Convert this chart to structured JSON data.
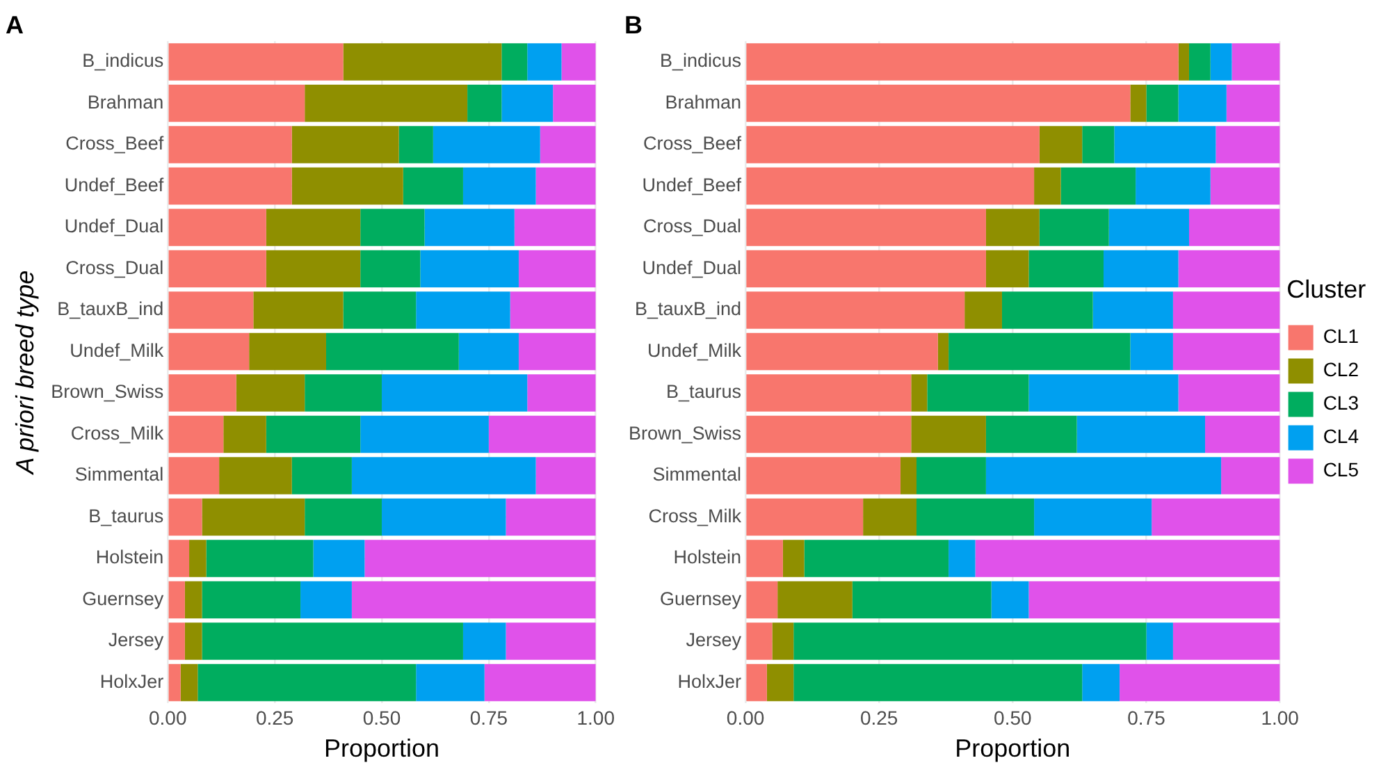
{
  "chart_data": [
    {
      "type": "bar",
      "title": "A",
      "orientation": "horizontal",
      "stacked": true,
      "xlabel": "Proportion",
      "ylabel": "A priori breed type",
      "grid": true,
      "legend": false,
      "categories": [
        "B_indicus",
        "Brahman",
        "Cross_Beef",
        "Undef_Beef",
        "Undef_Dual",
        "Cross_Dual",
        "B_tauxB_ind",
        "Undef_Milk",
        "Brown_Swiss",
        "Cross_Milk",
        "Simmental",
        "B_taurus",
        "Holstein",
        "Guernsey",
        "Jersey",
        "HolxJer"
      ],
      "xlim": [
        0,
        1
      ],
      "xticks": [
        {
          "value": 0,
          "label": "0.00"
        },
        {
          "value": 0.25,
          "label": "0.25"
        },
        {
          "value": 0.5,
          "label": "0.50"
        },
        {
          "value": 0.75,
          "label": "0.75"
        },
        {
          "value": 1,
          "label": "1.00"
        }
      ],
      "series": [
        {
          "color": "#f8766d",
          "values": [
            0.41,
            0.32,
            0.29,
            0.29,
            0.23,
            0.23,
            0.2,
            0.19,
            0.16,
            0.13,
            0.12,
            0.08,
            0.05,
            0.04,
            0.04,
            0.03
          ]
        },
        {
          "color": "#8f8f00",
          "values": [
            0.37,
            0.38,
            0.25,
            0.26,
            0.22,
            0.22,
            0.21,
            0.18,
            0.16,
            0.1,
            0.17,
            0.24,
            0.04,
            0.04,
            0.04,
            0.04
          ]
        },
        {
          "color": "#00ad5f",
          "values": [
            0.06,
            0.08,
            0.08,
            0.14,
            0.15,
            0.14,
            0.17,
            0.31,
            0.18,
            0.22,
            0.14,
            0.18,
            0.25,
            0.23,
            0.61,
            0.51
          ]
        },
        {
          "color": "#00a0f0",
          "values": [
            0.08,
            0.12,
            0.25,
            0.17,
            0.21,
            0.23,
            0.22,
            0.14,
            0.34,
            0.3,
            0.43,
            0.29,
            0.12,
            0.12,
            0.1,
            0.16
          ]
        },
        {
          "color": "#e052ea",
          "values": [
            0.08,
            0.1,
            0.13,
            0.14,
            0.19,
            0.18,
            0.2,
            0.18,
            0.16,
            0.25,
            0.14,
            0.21,
            0.54,
            0.57,
            0.21,
            0.26
          ]
        }
      ]
    },
    {
      "type": "bar",
      "title": "B",
      "orientation": "horizontal",
      "stacked": true,
      "xlabel": "Proportion",
      "grid": true,
      "legend": "right",
      "legend_title": "Cluster",
      "categories": [
        "B_indicus",
        "Brahman",
        "Cross_Beef",
        "Undef_Beef",
        "Cross_Dual",
        "Undef_Dual",
        "B_tauxB_ind",
        "Undef_Milk",
        "B_taurus",
        "Brown_Swiss",
        "Simmental",
        "Cross_Milk",
        "Holstein",
        "Guernsey",
        "Jersey",
        "HolxJer"
      ],
      "xlim": [
        0,
        1
      ],
      "xticks": [
        {
          "value": 0,
          "label": "0.00"
        },
        {
          "value": 0.25,
          "label": "0.25"
        },
        {
          "value": 0.5,
          "label": "0.50"
        },
        {
          "value": 0.75,
          "label": "0.75"
        },
        {
          "value": 1,
          "label": "1.00"
        }
      ],
      "series": [
        {
          "name": "CL1",
          "color": "#f8766d",
          "values": [
            0.81,
            0.72,
            0.55,
            0.54,
            0.45,
            0.45,
            0.41,
            0.36,
            0.31,
            0.31,
            0.29,
            0.22,
            0.07,
            0.06,
            0.05,
            0.04
          ]
        },
        {
          "name": "CL2",
          "color": "#8f8f00",
          "values": [
            0.02,
            0.03,
            0.08,
            0.05,
            0.1,
            0.08,
            0.07,
            0.02,
            0.03,
            0.14,
            0.03,
            0.1,
            0.04,
            0.14,
            0.04,
            0.05
          ]
        },
        {
          "name": "CL3",
          "color": "#00ad5f",
          "values": [
            0.04,
            0.06,
            0.06,
            0.14,
            0.13,
            0.14,
            0.17,
            0.34,
            0.19,
            0.17,
            0.13,
            0.22,
            0.27,
            0.26,
            0.66,
            0.54
          ]
        },
        {
          "name": "CL4",
          "color": "#00a0f0",
          "values": [
            0.04,
            0.09,
            0.19,
            0.14,
            0.15,
            0.14,
            0.15,
            0.08,
            0.28,
            0.24,
            0.44,
            0.22,
            0.05,
            0.07,
            0.05,
            0.07
          ]
        },
        {
          "name": "CL5",
          "color": "#e052ea",
          "values": [
            0.09,
            0.1,
            0.12,
            0.13,
            0.17,
            0.19,
            0.2,
            0.2,
            0.19,
            0.14,
            0.11,
            0.24,
            0.57,
            0.47,
            0.2,
            0.3
          ]
        }
      ]
    }
  ]
}
